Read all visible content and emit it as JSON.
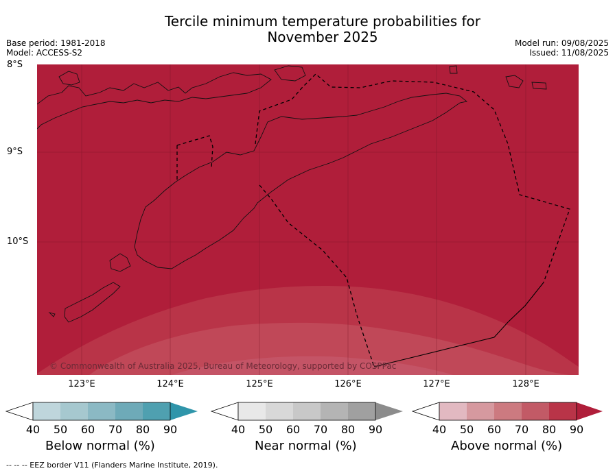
{
  "title_line1": "Tercile minimum temperature probabilities for",
  "title_line2": "November 2025",
  "meta_left": {
    "base_period": "Base period: 1981-2018",
    "model": "Model: ACCESS-S2"
  },
  "meta_right": {
    "model_run": "Model run: 09/08/2025",
    "issued": "Issued: 11/08/2025"
  },
  "lat_labels": [
    "8°S",
    "9°S",
    "10°S"
  ],
  "lon_labels": [
    "123°E",
    "124°E",
    "125°E",
    "126°E",
    "127°E",
    "128°E"
  ],
  "copyright": "© Commonwealth of Australia 2025, Bureau of Meteorology, supported by COSPPac",
  "colorbars": [
    {
      "label": "Below normal (%)",
      "ticks": [
        "40",
        "50",
        "60",
        "70",
        "80",
        "90"
      ],
      "colors": [
        "#bfd6dc",
        "#a6c8cf",
        "#8bb9c4",
        "#6eaab8",
        "#4fa0b0",
        "#2f95aa"
      ]
    },
    {
      "label": "Near normal (%)",
      "ticks": [
        "40",
        "50",
        "60",
        "70",
        "80",
        "90"
      ],
      "colors": [
        "#e8e8e8",
        "#d8d8d8",
        "#c8c8c8",
        "#b4b4b4",
        "#a0a0a0",
        "#8c8c8c"
      ]
    },
    {
      "label": "Above normal (%)",
      "ticks": [
        "40",
        "50",
        "60",
        "70",
        "80",
        "90"
      ],
      "colors": [
        "#e2b9c1",
        "#d6999f",
        "#cc7a80",
        "#c25a66",
        "#b93448",
        "#b01e3a"
      ]
    }
  ],
  "footer": "--  --  -- EEZ border V11 (Flanders Marine Institute, 2019).",
  "colors": {
    "above_90": "#b01e3a",
    "above_80": "#b93448",
    "above_70": "#c04858"
  }
}
